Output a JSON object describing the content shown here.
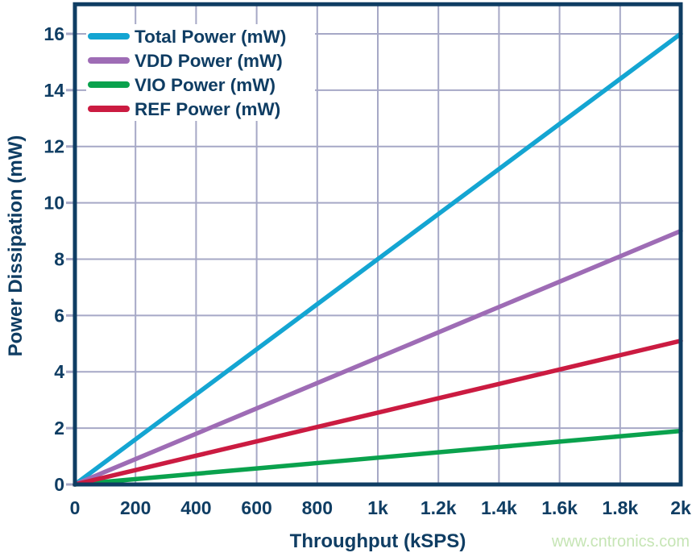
{
  "style": {
    "axis_color": "#0f3d63",
    "grid_color": "#a6a8c6",
    "background": "#ffffff"
  },
  "watermark": {
    "text": "www.cntronics.com",
    "color": "#c6e5b5"
  },
  "chart_data": {
    "type": "line",
    "title": "",
    "xlabel": "Throughput (kSPS)",
    "ylabel": "Power Dissipation (mW)",
    "xlim": [
      0,
      2000
    ],
    "ylim": [
      0,
      16
    ],
    "grid": true,
    "legend_position": "top-left",
    "x_ticks": [
      {
        "value": 0,
        "label": "0"
      },
      {
        "value": 200,
        "label": "200"
      },
      {
        "value": 400,
        "label": "400"
      },
      {
        "value": 600,
        "label": "600"
      },
      {
        "value": 800,
        "label": "800"
      },
      {
        "value": 1000,
        "label": "1k"
      },
      {
        "value": 1200,
        "label": "1.2k"
      },
      {
        "value": 1400,
        "label": "1.4k"
      },
      {
        "value": 1600,
        "label": "1.6k"
      },
      {
        "value": 1800,
        "label": "1.8k"
      },
      {
        "value": 2000,
        "label": "2k"
      }
    ],
    "y_ticks": [
      {
        "value": 0,
        "label": "0"
      },
      {
        "value": 2,
        "label": "2"
      },
      {
        "value": 4,
        "label": "4"
      },
      {
        "value": 6,
        "label": "6"
      },
      {
        "value": 8,
        "label": "8"
      },
      {
        "value": 10,
        "label": "10"
      },
      {
        "value": 12,
        "label": "12"
      },
      {
        "value": 14,
        "label": "14"
      },
      {
        "value": 16,
        "label": "16"
      }
    ],
    "x": [
      0,
      200,
      400,
      600,
      800,
      1000,
      1200,
      1400,
      1600,
      1800,
      2000
    ],
    "series": [
      {
        "name": "Total Power (mW)",
        "color": "#14a5d2",
        "values": [
          0,
          1.6,
          3.2,
          4.8,
          6.4,
          8.0,
          9.6,
          11.2,
          12.8,
          14.4,
          16.0
        ]
      },
      {
        "name": "VDD Power (mW)",
        "color": "#9e6cb5",
        "values": [
          0,
          0.9,
          1.8,
          2.7,
          3.6,
          4.5,
          5.4,
          6.3,
          7.2,
          8.1,
          9.0
        ]
      },
      {
        "name": "VIO Power (mW)",
        "color": "#0aa24d",
        "values": [
          0,
          0.19,
          0.38,
          0.57,
          0.76,
          0.95,
          1.14,
          1.33,
          1.52,
          1.71,
          1.9
        ]
      },
      {
        "name": "REF Power (mW)",
        "color": "#cb1b41",
        "values": [
          0,
          0.51,
          1.02,
          1.53,
          2.04,
          2.55,
          3.06,
          3.57,
          4.08,
          4.59,
          5.1
        ]
      }
    ]
  }
}
